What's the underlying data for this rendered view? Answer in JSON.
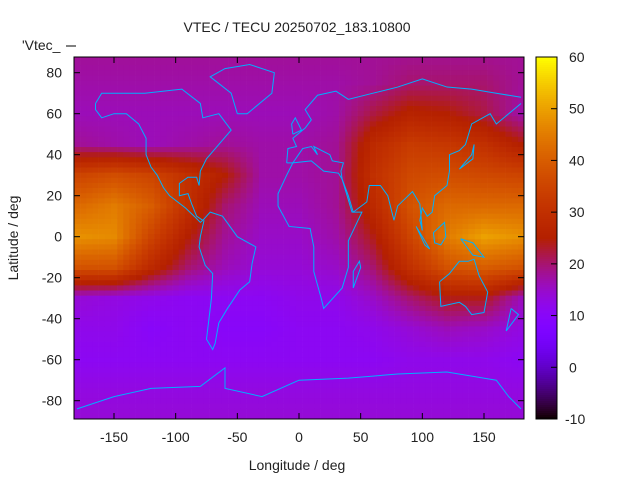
{
  "chart_data": {
    "type": "heatmap",
    "title": "VTEC / TECU 20250702_183.10800",
    "xlabel": "Longitude / deg",
    "ylabel": "Latitude / deg",
    "legend_label": "'Vtec_",
    "xlim": [
      -182.5,
      182.5
    ],
    "ylim": [
      -89,
      87.5
    ],
    "xticks": [
      -150,
      -100,
      -50,
      0,
      50,
      100,
      150
    ],
    "yticks": [
      80,
      60,
      40,
      20,
      0,
      -20,
      -40,
      -60,
      -80
    ],
    "ytick_labels": [
      "80",
      "60",
      "40",
      "20",
      "0",
      "-20",
      "-40",
      "-60",
      "-80"
    ],
    "xtick_labels": [
      "-150",
      "-100",
      "-50",
      "0",
      "50",
      "100",
      "150"
    ],
    "colorbar": {
      "range": [
        -10,
        60
      ],
      "ticks": [
        "60",
        "50",
        "40",
        "30",
        "20",
        "10",
        "0",
        "-10"
      ],
      "tick_values": [
        60,
        50,
        40,
        30,
        20,
        10,
        0,
        -10
      ]
    },
    "grid_lon": [
      -180,
      -150,
      -120,
      -90,
      -60,
      -30,
      0,
      30,
      60,
      90,
      120,
      150,
      180
    ],
    "grid_lat": [
      90,
      75,
      60,
      45,
      30,
      15,
      0,
      -15,
      -30,
      -45,
      -60,
      -75,
      -90
    ],
    "values": [
      [
        18,
        18,
        18,
        18,
        18,
        18,
        18,
        18,
        18,
        18,
        18,
        18,
        18
      ],
      [
        17,
        17,
        17,
        17,
        17,
        17,
        17,
        17,
        18,
        20,
        20,
        20,
        18
      ],
      [
        16,
        16,
        16,
        16,
        16,
        16,
        16,
        17,
        22,
        26,
        25,
        22,
        17
      ],
      [
        18,
        17,
        16,
        17,
        18,
        17,
        17,
        18,
        28,
        33,
        32,
        30,
        25
      ],
      [
        35,
        37,
        35,
        30,
        25,
        17,
        17,
        18,
        30,
        36,
        37,
        36,
        35
      ],
      [
        42,
        45,
        40,
        30,
        20,
        16,
        16,
        18,
        28,
        38,
        42,
        42,
        42
      ],
      [
        48,
        47,
        35,
        25,
        18,
        15,
        15,
        17,
        24,
        35,
        45,
        50,
        48
      ],
      [
        38,
        38,
        28,
        20,
        16,
        14,
        14,
        15,
        20,
        30,
        38,
        40,
        38
      ],
      [
        14,
        13,
        12,
        11,
        11,
        11,
        12,
        12,
        15,
        20,
        24,
        24,
        16
      ],
      [
        12,
        12,
        10,
        11,
        10,
        10,
        11,
        11,
        12,
        14,
        16,
        15,
        13
      ],
      [
        11,
        11,
        11,
        11,
        11,
        11,
        11,
        11,
        11,
        12,
        12,
        12,
        11
      ],
      [
        13,
        13,
        13,
        13,
        13,
        13,
        13,
        13,
        13,
        13,
        13,
        13,
        13
      ],
      [
        14,
        14,
        14,
        14,
        14,
        14,
        14,
        14,
        14,
        14,
        14,
        14,
        14
      ]
    ]
  }
}
